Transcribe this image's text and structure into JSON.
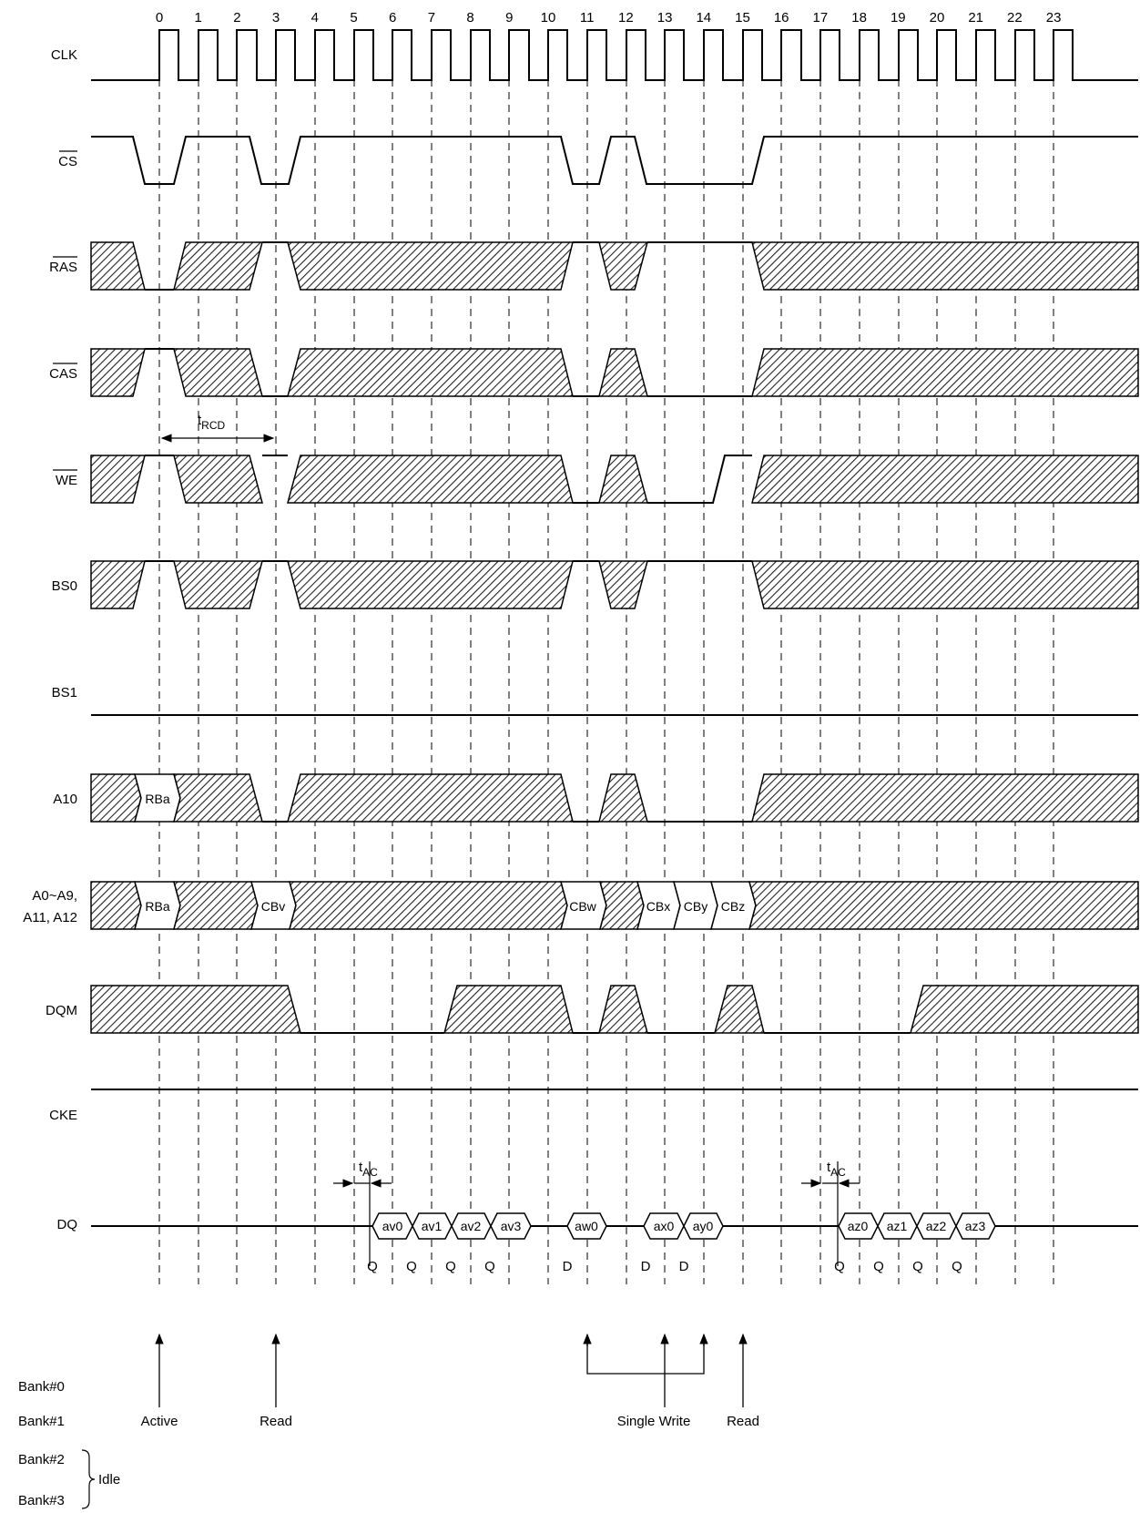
{
  "clock_numbers": [
    "0",
    "1",
    "2",
    "3",
    "4",
    "5",
    "6",
    "7",
    "8",
    "9",
    "10",
    "11",
    "12",
    "13",
    "14",
    "15",
    "16",
    "17",
    "18",
    "19",
    "20",
    "21",
    "22",
    "23"
  ],
  "signals": {
    "clk": "CLK",
    "cs": "CS",
    "ras": "RAS",
    "cas": "CAS",
    "we": "WE",
    "bs0": "BS0",
    "bs1": "BS1",
    "a10": "A10",
    "addr_line1": "A0~A9,",
    "addr_line2": "A11, A12",
    "dqm": "DQM",
    "cke": "CKE",
    "dq": "DQ"
  },
  "a10_cells": [
    "RBa"
  ],
  "addr_cells": [
    "RBa",
    "CBv",
    "CBw",
    "CBx",
    "CBy",
    "CBz"
  ],
  "dq_cells": [
    "av0",
    "av1",
    "av2",
    "av3",
    "aw0",
    "ax0",
    "ay0",
    "az0",
    "az1",
    "az2",
    "az3"
  ],
  "qd_marks": [
    "Q",
    "Q",
    "Q",
    "Q",
    "D",
    "D",
    "D",
    "Q",
    "Q",
    "Q",
    "Q"
  ],
  "timing": {
    "trcd_main": "t",
    "trcd_sub": "RCD",
    "tac_main": "t",
    "tac_sub": "AC"
  },
  "commands": {
    "active": "Active",
    "read1": "Read",
    "single_write": "Single Write",
    "read2": "Read"
  },
  "banks": {
    "bank0": "Bank#0",
    "bank1": "Bank#1",
    "bank2": "Bank#2",
    "bank3": "Bank#3",
    "idle": "Idle"
  }
}
